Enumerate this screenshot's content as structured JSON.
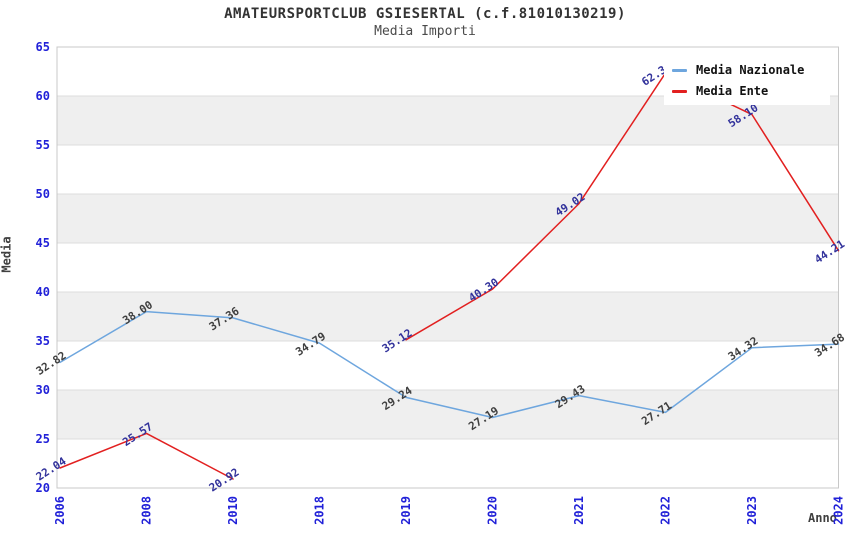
{
  "chart_data": {
    "type": "line",
    "title": "AMATEURSPORTCLUB GSIESERTAL (c.f.81010130219)",
    "subtitle": "Media Importi",
    "xlabel": "Anno",
    "ylabel": "Media",
    "ylim": [
      20,
      65
    ],
    "ytick_step": 5,
    "yticks": [
      20,
      25,
      30,
      35,
      40,
      45,
      50,
      55,
      60,
      65
    ],
    "grid": "horizontal gridlines with alternating gray/white bands every 5 units",
    "legend_position": "top-right overlay",
    "categories": [
      "2006",
      "2008",
      "2010",
      "2018",
      "2019",
      "2020",
      "2021",
      "2022",
      "2023",
      "2024"
    ],
    "series": [
      {
        "name": "Media Nazionale",
        "color": "#6ea6de",
        "label_color": "#3f3f3f",
        "values": [
          32.82,
          38.0,
          37.36,
          34.79,
          29.24,
          27.19,
          29.43,
          27.71,
          34.32,
          34.68
        ],
        "labels": [
          "32.82",
          "38.00",
          "37.36",
          "34.79",
          "29.24",
          "27.19",
          "29.43",
          "27.71",
          "34.32",
          "34.68"
        ]
      },
      {
        "name": "Media Ente",
        "color": "#e22020",
        "label_color": "#32329b",
        "values": [
          22.04,
          25.57,
          20.92,
          null,
          35.12,
          40.3,
          49.02,
          62.34,
          58.1,
          44.21
        ],
        "labels": [
          "22.04",
          "25.57",
          "20.92",
          "",
          "35.12",
          "40.30",
          "49.02",
          "62.34",
          "58.10",
          "44.21"
        ],
        "label_obscured_by_legend_index": 8
      }
    ],
    "axis_tick_color": "#2121d8"
  }
}
